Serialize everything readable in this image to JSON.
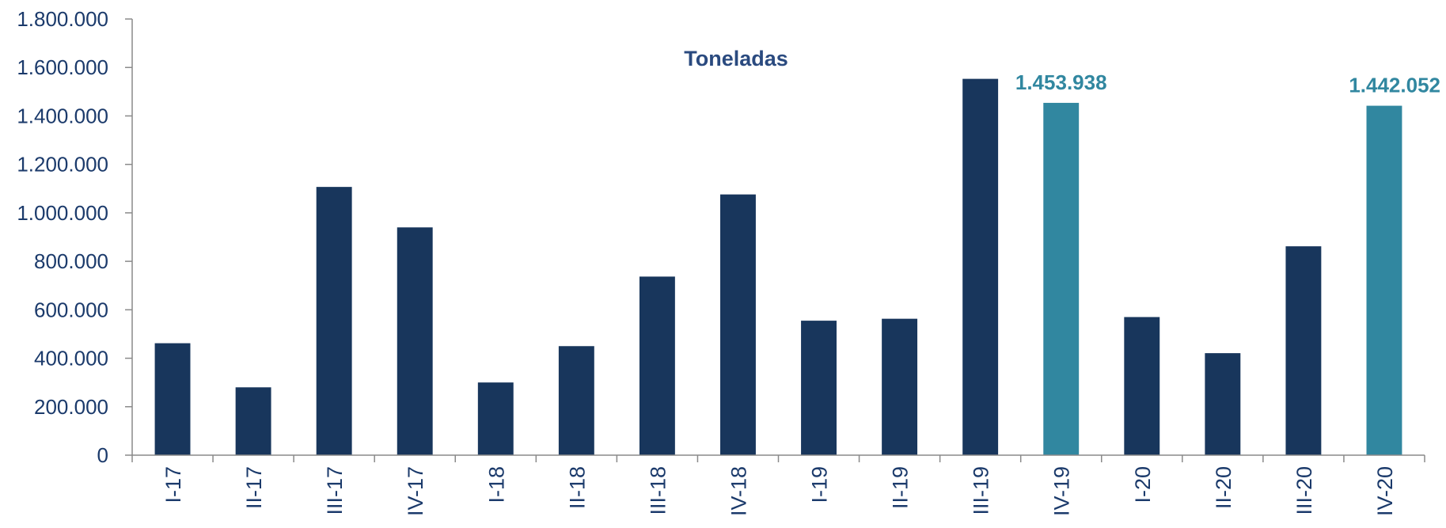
{
  "chart_data": {
    "type": "bar",
    "title": "Toneladas",
    "categories": [
      "I-17",
      "II-17",
      "III-17",
      "IV-17",
      "I-18",
      "II-18",
      "III-18",
      "IV-18",
      "I-19",
      "II-19",
      "III-19",
      "IV-19",
      "I-20",
      "II-20",
      "III-20",
      "IV-20"
    ],
    "series": [
      {
        "values": [
          462000,
          280000,
          1107000,
          940000,
          300000,
          450000,
          737000,
          1076000,
          555000,
          563000,
          1553000,
          1453938,
          570000,
          421000,
          862000,
          1442052
        ]
      }
    ],
    "highlight_indices": [
      11,
      15
    ],
    "data_labels": [
      {
        "index": 11,
        "text": "1.453.938"
      },
      {
        "index": 15,
        "text": "1.442.052"
      }
    ],
    "yticks": [
      "0",
      "200.000",
      "400.000",
      "600.000",
      "800.000",
      "1.000.000",
      "1.200.000",
      "1.400.000",
      "1.600.000",
      "1.800.000"
    ],
    "ylim": [
      0,
      1800000
    ],
    "xlabel": "",
    "ylabel": "",
    "grid": false,
    "colors": {
      "bar": "#18365c",
      "highlight": "#3187a0",
      "text": "#1b3a6b",
      "title": "#2a4a7f"
    }
  }
}
